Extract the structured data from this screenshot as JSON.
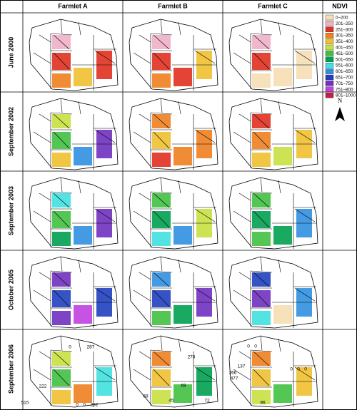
{
  "header": {
    "columns": [
      "Farmlet A",
      "Farmlet B",
      "Farmlet C"
    ],
    "legend_title": "NDVI"
  },
  "rows": [
    "June 2000",
    "September 2002",
    "September 2003",
    "October 2005",
    "September 2006"
  ],
  "legend": [
    {
      "label": "0–200",
      "color": "#f5deb3"
    },
    {
      "label": "201–250",
      "color": "#f0b0c8"
    },
    {
      "label": "251–300",
      "color": "#e03020"
    },
    {
      "label": "301–350",
      "color": "#f08020"
    },
    {
      "label": "351–400",
      "color": "#f0c030"
    },
    {
      "label": "401–450",
      "color": "#c8e040"
    },
    {
      "label": "451–500",
      "color": "#40c040"
    },
    {
      "label": "501–550",
      "color": "#00a050"
    },
    {
      "label": "551–600",
      "color": "#40e0e0"
    },
    {
      "label": "601–650",
      "color": "#3090e0"
    },
    {
      "label": "651–700",
      "color": "#2040c0"
    },
    {
      "label": "701–750",
      "color": "#7030c0"
    },
    {
      "label": "751–800",
      "color": "#c040e0"
    },
    {
      "label": "801–1000",
      "color": "#c02040"
    }
  ],
  "north": "N",
  "annotations": {
    "farmlet_a": [
      0,
      287,
      222,
      515,
      0,
      0,
      202
    ],
    "farmlet_b": [
      278,
      68,
      69,
      45,
      72
    ],
    "farmlet_c": [
      0,
      0,
      137,
      266,
      477,
      96,
      0,
      0,
      0
    ]
  }
}
